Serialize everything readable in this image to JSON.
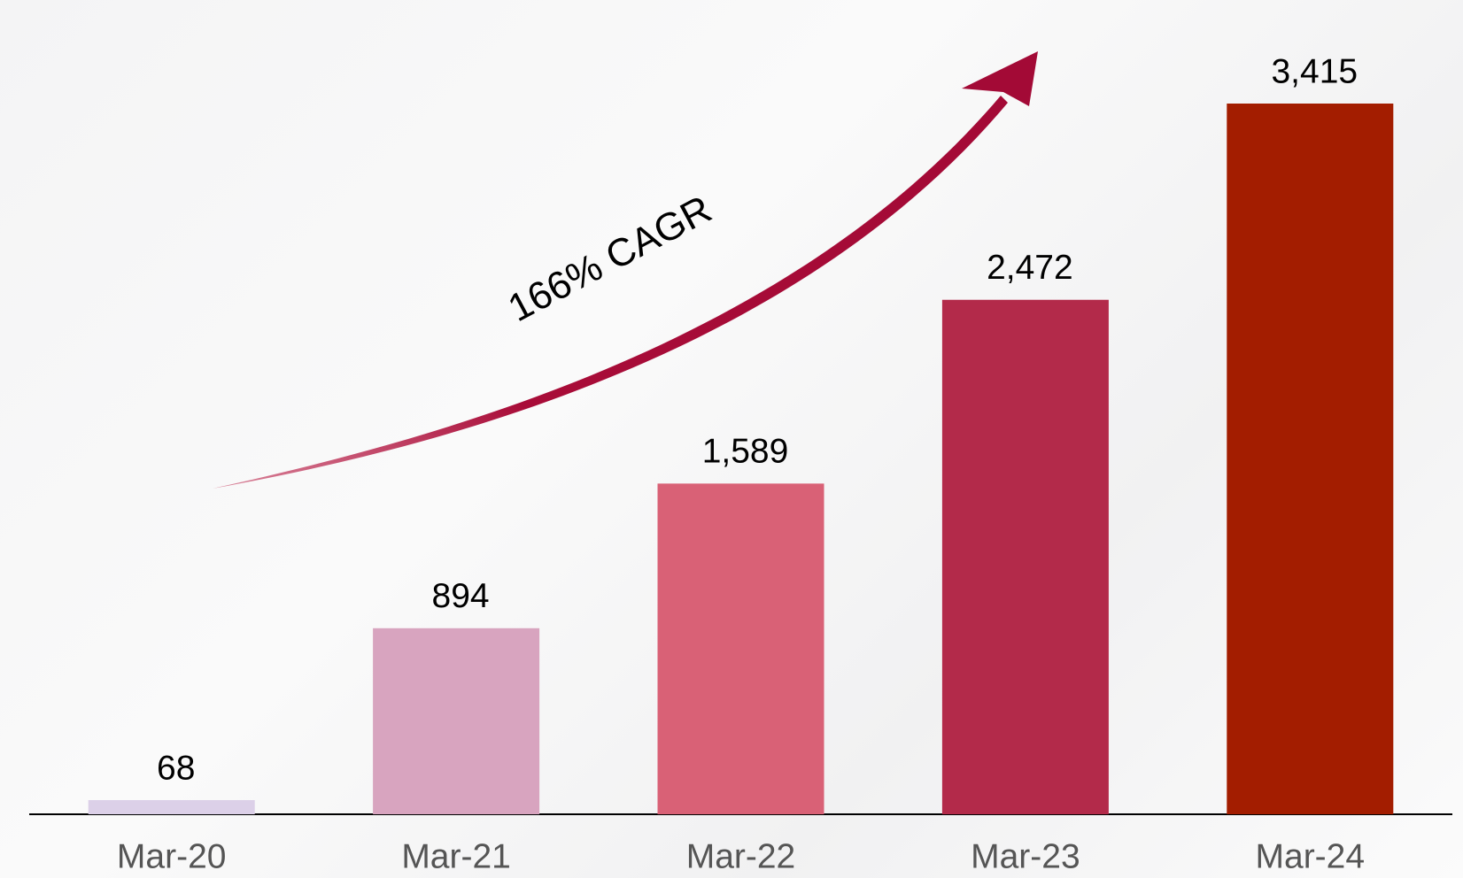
{
  "chart_data": {
    "type": "bar",
    "categories": [
      "Mar-20",
      "Mar-21",
      "Mar-22",
      "Mar-23",
      "Mar-24"
    ],
    "values": [
      68,
      894,
      1589,
      2472,
      3415
    ],
    "value_labels": [
      "68",
      "894",
      "1,589",
      "2,472",
      "3,415"
    ],
    "colors": [
      "#dcd0e8",
      "#d8a4bf",
      "#d96176",
      "#b32a4a",
      "#a31d00"
    ],
    "annotation": "166% CAGR"
  }
}
